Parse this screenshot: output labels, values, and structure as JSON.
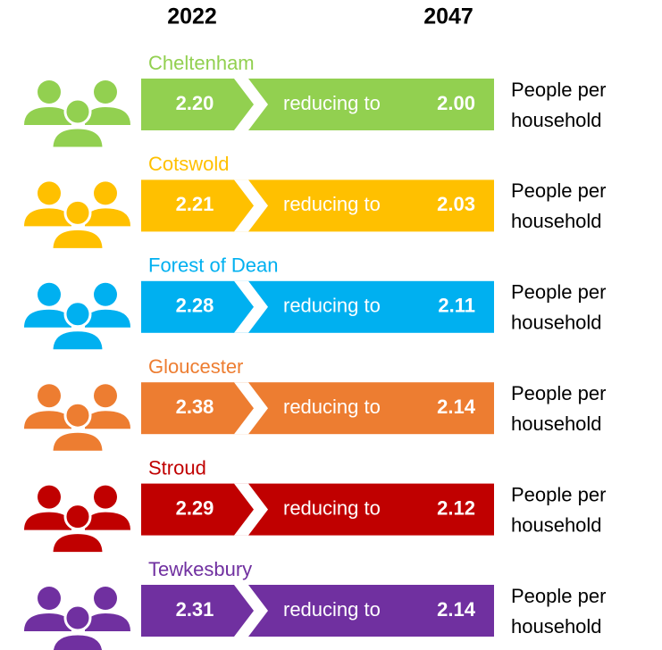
{
  "headers": [
    "2022",
    "2047"
  ],
  "rows": [
    {
      "name": "Cheltenham",
      "color": "#92d050",
      "start": "2.20",
      "middle": "reducing to",
      "end": "2.00",
      "side": [
        "People per",
        "household"
      ]
    },
    {
      "name": "Cotswold",
      "color": "#ffc000",
      "start": "2.21",
      "middle": "reducing to",
      "end": "2.03",
      "side": [
        "People per",
        "household"
      ]
    },
    {
      "name": "Forest of Dean",
      "color": "#00b0f0",
      "start": "2.28",
      "middle": "reducing to",
      "end": "2.11",
      "side": [
        "People per",
        "household"
      ]
    },
    {
      "name": "Gloucester",
      "color": "#ed7d31",
      "start": "2.38",
      "middle": "reducing to",
      "end": "2.14",
      "side": [
        "People per",
        "household"
      ]
    },
    {
      "name": "Stroud",
      "color": "#c00000",
      "start": "2.29",
      "middle": "reducing to",
      "end": "2.12",
      "side": [
        "People per",
        "household"
      ]
    },
    {
      "name": "Tewkesbury",
      "color": "#7030a0",
      "start": "2.31",
      "middle": "reducing to",
      "end": "2.14",
      "side": [
        "People per",
        "household"
      ]
    }
  ]
}
